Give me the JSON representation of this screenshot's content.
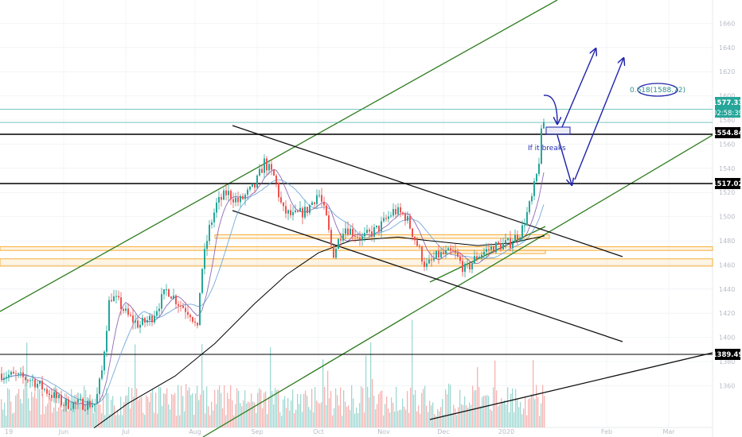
{
  "chart_data": {
    "type": "candlestick",
    "y_axis": {
      "range": [
        1330,
        1665
      ],
      "ticks": [
        1360,
        1380,
        1400,
        1420,
        1440,
        1460,
        1480,
        1500,
        1520,
        1540,
        1560,
        1580,
        1600,
        1620,
        1640,
        1660
      ]
    },
    "x_axis": {
      "ticks": [
        "Jun",
        "Jul",
        "Aug",
        "Sep",
        "Oct",
        "Nov",
        "Dec",
        "2020",
        "Feb",
        "Mar"
      ],
      "first_tick_partial": "19"
    },
    "price_tags": [
      {
        "value": "1577.33",
        "sub": "02:58:39",
        "bg": "#26a69a",
        "fg": "#ffffff"
      },
      {
        "value": "1554.84",
        "bg": "#000000",
        "fg": "#ffffff"
      },
      {
        "value": "1517.02",
        "bg": "#000000",
        "fg": "#ffffff"
      },
      {
        "value": "1389.49",
        "bg": "#000000",
        "fg": "#ffffff"
      }
    ],
    "horizontal_levels": [
      1589,
      1578,
      1555,
      1517,
      1389
    ],
    "support_zones": [
      [
        1482,
        1485
      ],
      [
        1472,
        1475
      ],
      [
        1459,
        1465
      ]
    ],
    "annotations": {
      "fib_label": "0.618(1588.72)",
      "breakout_note": "If it breaks"
    },
    "colors": {
      "up": "#26a69a",
      "down": "#ef5350",
      "ma_fast": "#7b4fa8",
      "ma_mid": "#5b9bd5",
      "ma_slow": "#000000",
      "channel": "#2e7d1e",
      "projection": "#1e22aa",
      "zone": "#f5a623",
      "current_level": "#26a69a"
    }
  }
}
